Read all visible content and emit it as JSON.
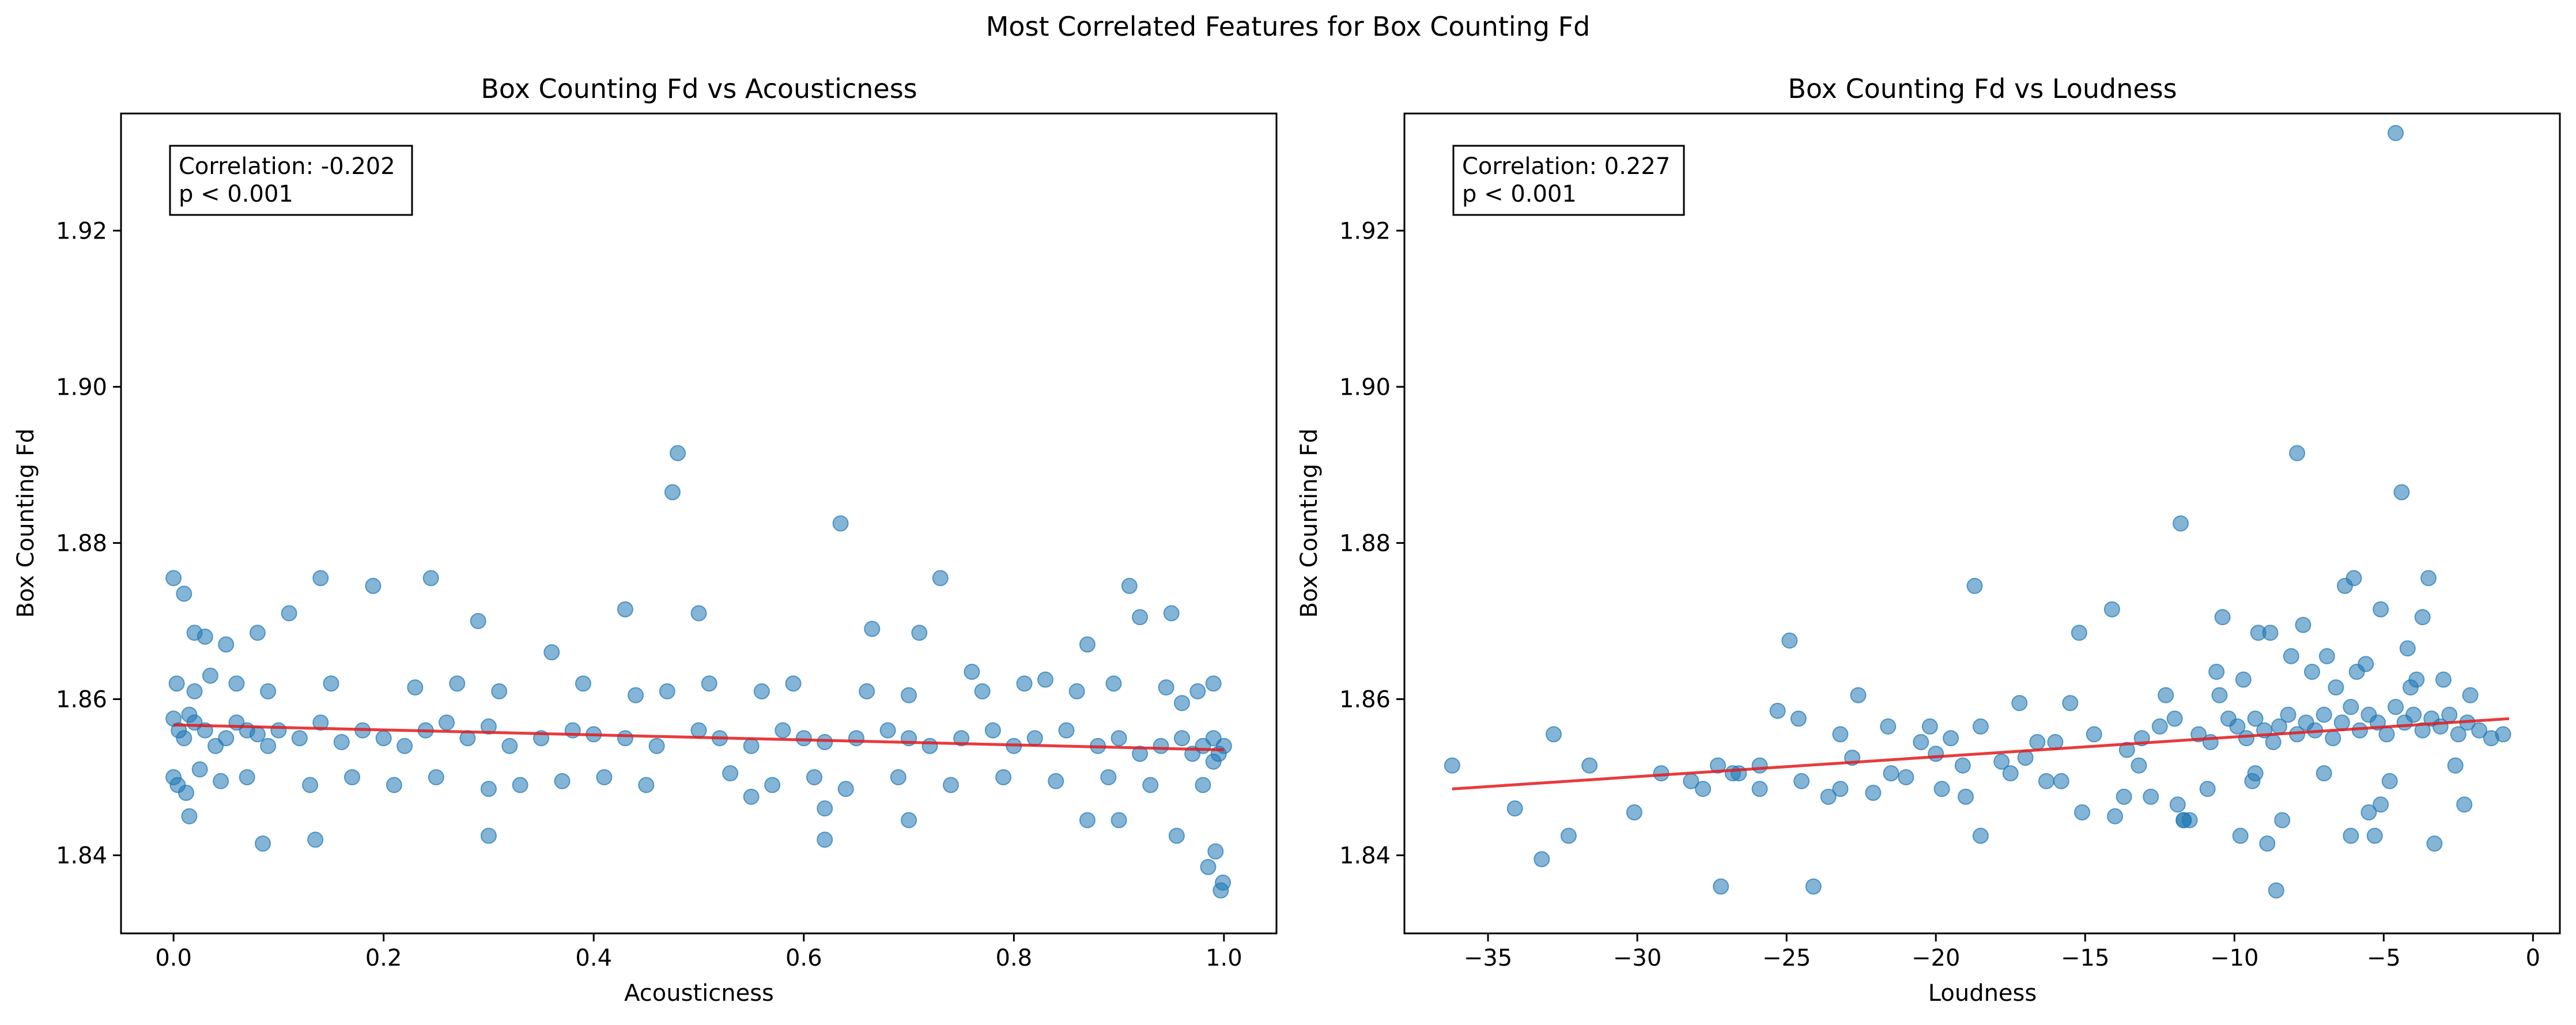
{
  "figure": {
    "suptitle": "Most Correlated Features for Box Counting Fd"
  },
  "chart_data": [
    {
      "type": "scatter",
      "title": "Box Counting Fd vs Acousticness",
      "xlabel": "Acousticness",
      "ylabel": "Box Counting Fd",
      "xlim": [
        -0.05,
        1.05
      ],
      "ylim": [
        1.83,
        1.935
      ],
      "xticks": [
        0.0,
        0.2,
        0.4,
        0.6,
        0.8,
        1.0
      ],
      "xtick_labels": [
        "0.0",
        "0.2",
        "0.4",
        "0.6",
        "0.8",
        "1.0"
      ],
      "yticks": [
        1.84,
        1.86,
        1.88,
        1.9,
        1.92
      ],
      "ytick_labels": [
        "1.84",
        "1.86",
        "1.88",
        "1.90",
        "1.92"
      ],
      "annotation": [
        "Correlation: -0.202",
        "p < 0.001"
      ],
      "point_color": "#1f77b4",
      "line_color": "#e31a1c",
      "trend_line": {
        "x": [
          0.0,
          1.0
        ],
        "y": [
          1.8567,
          1.8535
        ]
      },
      "points": {
        "x": [
          0.0,
          0.005,
          0.01,
          0.015,
          0.02,
          0.03,
          0.04,
          0.05,
          0.06,
          0.07,
          0.08,
          0.09,
          0.1,
          0.12,
          0.14,
          0.16,
          0.18,
          0.2,
          0.22,
          0.24,
          0.26,
          0.28,
          0.3,
          0.32,
          0.35,
          0.38,
          0.4,
          0.43,
          0.46,
          0.475,
          0.48,
          0.5,
          0.52,
          0.55,
          0.58,
          0.6,
          0.62,
          0.635,
          0.65,
          0.68,
          0.7,
          0.72,
          0.73,
          0.75,
          0.78,
          0.8,
          0.82,
          0.85,
          0.88,
          0.9,
          0.91,
          0.92,
          0.94,
          0.95,
          0.96,
          0.97,
          0.98,
          0.99,
          0.99,
          0.995,
          1.0,
          0.0,
          0.01,
          0.02,
          0.03,
          0.05,
          0.08,
          0.11,
          0.14,
          0.19,
          0.245,
          0.29,
          0.3,
          0.36,
          0.43,
          0.5,
          0.62,
          0.665,
          0.71,
          0.76,
          0.83,
          0.87,
          0.92,
          0.96,
          0.997,
          0.999,
          0.0,
          0.004,
          0.012,
          0.025,
          0.045,
          0.07,
          0.13,
          0.17,
          0.21,
          0.25,
          0.33,
          0.37,
          0.41,
          0.45,
          0.53,
          0.57,
          0.61,
          0.64,
          0.69,
          0.74,
          0.79,
          0.84,
          0.89,
          0.93,
          0.98,
          0.003,
          0.02,
          0.035,
          0.06,
          0.09,
          0.15,
          0.23,
          0.27,
          0.31,
          0.39,
          0.44,
          0.47,
          0.51,
          0.56,
          0.59,
          0.66,
          0.7,
          0.77,
          0.81,
          0.86,
          0.895,
          0.945,
          0.975,
          0.99,
          0.015,
          0.085,
          0.135,
          0.3,
          0.55,
          0.62,
          0.7,
          0.87,
          0.9,
          0.955,
          0.985,
          0.992
        ],
        "y": [
          1.8575,
          1.856,
          1.855,
          1.858,
          1.857,
          1.856,
          1.854,
          1.855,
          1.857,
          1.856,
          1.8555,
          1.854,
          1.856,
          1.855,
          1.857,
          1.8545,
          1.856,
          1.855,
          1.854,
          1.856,
          1.857,
          1.855,
          1.8565,
          1.854,
          1.855,
          1.856,
          1.8555,
          1.855,
          1.854,
          1.8865,
          1.8915,
          1.856,
          1.855,
          1.854,
          1.856,
          1.855,
          1.8545,
          1.8825,
          1.855,
          1.856,
          1.855,
          1.854,
          1.8755,
          1.855,
          1.856,
          1.854,
          1.855,
          1.856,
          1.854,
          1.855,
          1.8745,
          1.853,
          1.854,
          1.871,
          1.855,
          1.853,
          1.854,
          1.852,
          1.855,
          1.853,
          1.854,
          1.8755,
          1.8735,
          1.8685,
          1.868,
          1.867,
          1.8685,
          1.871,
          1.8755,
          1.8745,
          1.8755,
          1.87,
          1.8425,
          1.866,
          1.8715,
          1.871,
          1.842,
          1.869,
          1.8685,
          1.8635,
          1.8625,
          1.867,
          1.8705,
          1.8595,
          1.8355,
          1.8365,
          1.85,
          1.849,
          1.848,
          1.851,
          1.8495,
          1.85,
          1.849,
          1.85,
          1.849,
          1.85,
          1.849,
          1.8495,
          1.85,
          1.849,
          1.8505,
          1.849,
          1.85,
          1.8485,
          1.85,
          1.849,
          1.85,
          1.8495,
          1.85,
          1.849,
          1.849,
          1.862,
          1.861,
          1.863,
          1.862,
          1.861,
          1.862,
          1.8615,
          1.862,
          1.861,
          1.862,
          1.8605,
          1.861,
          1.862,
          1.861,
          1.862,
          1.861,
          1.8605,
          1.861,
          1.862,
          1.861,
          1.862,
          1.8615,
          1.861,
          1.862,
          1.845,
          1.8415,
          1.842,
          1.8485,
          1.8475,
          1.846,
          1.8445,
          1.8445,
          1.8445,
          1.8425,
          1.8385,
          1.8405
        ]
      }
    },
    {
      "type": "scatter",
      "title": "Box Counting Fd vs Loudness",
      "xlabel": "Loudness",
      "ylabel": "Box Counting Fd",
      "xlim": [
        -37.8,
        0.9
      ],
      "ylim": [
        1.83,
        1.935
      ],
      "xticks": [
        -35,
        -30,
        -25,
        -20,
        -15,
        -10,
        -5,
        0
      ],
      "xtick_labels": [
        "−35",
        "−30",
        "−25",
        "−20",
        "−15",
        "−10",
        "−5",
        "0"
      ],
      "yticks": [
        1.84,
        1.86,
        1.88,
        1.9,
        1.92
      ],
      "ytick_labels": [
        "1.84",
        "1.86",
        "1.88",
        "1.90",
        "1.92"
      ],
      "annotation": [
        "Correlation: 0.227",
        "p < 0.001"
      ],
      "point_color": "#1f77b4",
      "line_color": "#e31a1c",
      "trend_line": {
        "x": [
          -36.2,
          -0.8
        ],
        "y": [
          1.8485,
          1.8575
        ]
      },
      "points": {
        "x": [
          -36.2,
          -34.1,
          -33.2,
          -32.8,
          -32.3,
          -31.6,
          -30.1,
          -28.2,
          -27.8,
          -27.2,
          -26.6,
          -25.9,
          -25.3,
          -24.9,
          -24.6,
          -24.1,
          -23.6,
          -23.2,
          -22.6,
          -22.1,
          -21.6,
          -21.0,
          -20.5,
          -20.0,
          -19.5,
          -19.0,
          -18.7,
          -18.5,
          -17.8,
          -17.2,
          -16.6,
          -16.0,
          -15.5,
          -15.2,
          -14.7,
          -14.1,
          -13.6,
          -13.1,
          -12.5,
          -12.0,
          -11.8,
          -11.5,
          -11.2,
          -10.8,
          -10.5,
          -10.2,
          -9.9,
          -9.6,
          -9.3,
          -9.0,
          -8.7,
          -8.5,
          -8.2,
          -7.9,
          -7.6,
          -7.3,
          -7.0,
          -6.7,
          -6.4,
          -6.1,
          -5.8,
          -5.5,
          -5.2,
          -4.9,
          -4.6,
          -4.3,
          -4.0,
          -3.7,
          -3.4,
          -3.1,
          -2.8,
          -2.5,
          -2.2,
          -1.8,
          -1.4,
          -1.0,
          -8.6,
          -4.6,
          -11.7,
          -4.4,
          -7.9,
          -14.0,
          -5.5,
          -9.8,
          -8.9,
          -2.3,
          -5.3,
          -9.2,
          -8.8,
          -6.3,
          -3.5,
          -12.3,
          -6.0,
          -10.4,
          -7.7,
          -5.1,
          -3.7,
          -13.7,
          -16.3,
          -18.5,
          -19.8,
          -23.2,
          -24.5,
          -25.9,
          -26.8,
          -27.3,
          -29.2,
          -21.5,
          -22.8,
          -17.5,
          -15.1,
          -11.9,
          -11.7,
          -8.4,
          -6.1,
          -3.3,
          -9.3,
          -9.4,
          -5.1,
          -20.2,
          -12.8,
          -10.9,
          -7.0,
          -4.8,
          -2.6,
          -7.4,
          -6.9,
          -5.6,
          -4.2,
          -3.9,
          -10.6,
          -9.7,
          -8.1,
          -6.6,
          -5.9,
          -4.1,
          -3.0,
          -2.1,
          -13.2,
          -15.8,
          -17.0,
          -19.1
        ],
        "y": [
          1.8515,
          1.846,
          1.8395,
          1.8555,
          1.8425,
          1.8515,
          1.8455,
          1.8495,
          1.8485,
          1.836,
          1.8505,
          1.8515,
          1.8585,
          1.8675,
          1.8575,
          1.836,
          1.8475,
          1.8555,
          1.8605,
          1.848,
          1.8565,
          1.85,
          1.8545,
          1.853,
          1.855,
          1.8475,
          1.8745,
          1.8565,
          1.852,
          1.8595,
          1.8545,
          1.8545,
          1.8595,
          1.8685,
          1.8555,
          1.8715,
          1.8535,
          1.855,
          1.8565,
          1.8575,
          1.8825,
          1.8445,
          1.8555,
          1.8545,
          1.8605,
          1.8575,
          1.8565,
          1.855,
          1.8575,
          1.856,
          1.8545,
          1.8565,
          1.858,
          1.8555,
          1.857,
          1.856,
          1.858,
          1.855,
          1.857,
          1.859,
          1.856,
          1.858,
          1.857,
          1.8555,
          1.859,
          1.857,
          1.858,
          1.856,
          1.8575,
          1.8565,
          1.858,
          1.8555,
          1.857,
          1.856,
          1.855,
          1.8555,
          1.8355,
          1.9325,
          1.8445,
          1.8865,
          1.8915,
          1.845,
          1.8455,
          1.8425,
          1.8415,
          1.8465,
          1.8425,
          1.8685,
          1.8685,
          1.8745,
          1.8755,
          1.8605,
          1.8755,
          1.8705,
          1.8695,
          1.8715,
          1.8705,
          1.8475,
          1.8495,
          1.8425,
          1.8485,
          1.8485,
          1.8495,
          1.8485,
          1.8505,
          1.8515,
          1.8505,
          1.8505,
          1.8525,
          1.8505,
          1.8455,
          1.8465,
          1.8445,
          1.8445,
          1.8425,
          1.8415,
          1.8505,
          1.8495,
          1.8465,
          1.8565,
          1.8475,
          1.8485,
          1.8505,
          1.8495,
          1.8515,
          1.8635,
          1.8655,
          1.8645,
          1.8665,
          1.8625,
          1.8635,
          1.8625,
          1.8655,
          1.8615,
          1.8635,
          1.8615,
          1.8625,
          1.8605,
          1.8515,
          1.8495,
          1.8525,
          1.8515
        ]
      }
    }
  ]
}
